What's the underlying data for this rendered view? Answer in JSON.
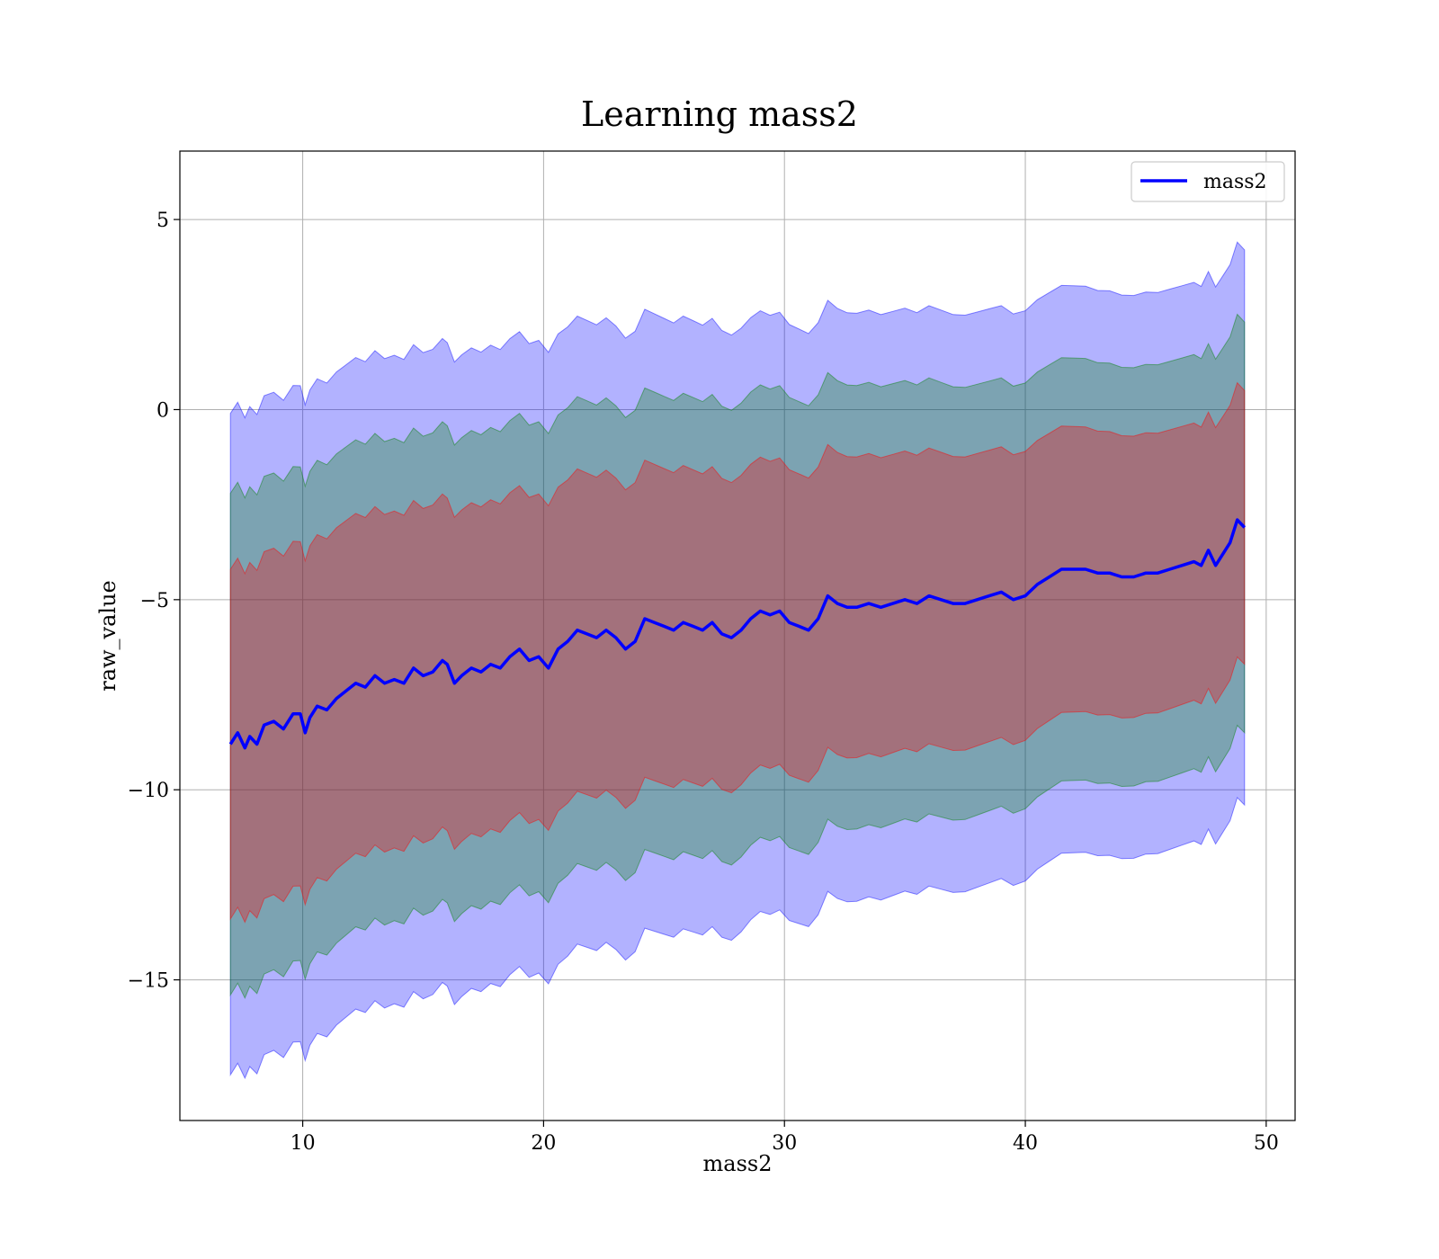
{
  "chart_data": {
    "type": "area",
    "title": "Learning mass2",
    "xlabel": "mass2",
    "ylabel": "raw_value",
    "xlim": [
      4.9,
      51.2
    ],
    "ylim": [
      -18.7,
      6.8
    ],
    "xticks": [
      10,
      20,
      30,
      40,
      50
    ],
    "yticks": [
      5,
      0,
      -5,
      -10,
      -15
    ],
    "xtick_labels": [
      "10",
      "20",
      "30",
      "40",
      "50"
    ],
    "ytick_labels": [
      "5",
      "0",
      "−5",
      "−10",
      "−15"
    ],
    "grid": true,
    "legend_position": "top-right",
    "bands": [
      {
        "sigma": 3,
        "color": "#0000ff",
        "opacity": 0.3,
        "half_width": [
          8.7,
          8.5,
          8.2,
          7.8,
          7.5,
          7.3
        ]
      },
      {
        "sigma": 2,
        "color": "#008000",
        "opacity": 0.3,
        "half_width": [
          6.6,
          6.3,
          6.1,
          5.9,
          5.6,
          5.4
        ]
      },
      {
        "sigma": 1,
        "color": "#ff0000",
        "opacity": 0.3,
        "half_width": [
          4.6,
          4.4,
          4.2,
          4.0,
          3.8,
          3.6
        ]
      }
    ],
    "band_width_x": [
      7.0,
      15.0,
      23.0,
      31.0,
      40.0,
      49.1
    ],
    "series": [
      {
        "name": "mass2",
        "color": "#0000ff",
        "x": [
          7.0,
          7.3,
          7.6,
          7.8,
          8.1,
          8.4,
          8.8,
          9.2,
          9.6,
          9.9,
          10.1,
          10.3,
          10.6,
          11.0,
          11.4,
          11.8,
          12.2,
          12.6,
          13.0,
          13.4,
          13.8,
          14.2,
          14.6,
          15.0,
          15.4,
          15.8,
          16.0,
          16.3,
          16.6,
          17.0,
          17.4,
          17.8,
          18.2,
          18.6,
          19.0,
          19.4,
          19.8,
          20.2,
          20.6,
          21.0,
          21.4,
          21.8,
          22.2,
          22.6,
          23.0,
          23.4,
          23.8,
          24.2,
          24.6,
          25.0,
          25.4,
          25.8,
          26.2,
          26.6,
          27.0,
          27.4,
          27.8,
          28.2,
          28.6,
          29.0,
          29.4,
          29.8,
          30.2,
          30.6,
          31.0,
          31.4,
          31.8,
          32.2,
          32.6,
          33.0,
          33.5,
          34.0,
          34.5,
          35.0,
          35.5,
          36.0,
          36.5,
          37.0,
          37.5,
          38.0,
          38.5,
          39.0,
          39.5,
          40.0,
          40.5,
          41.0,
          41.5,
          42.0,
          42.5,
          43.0,
          43.5,
          44.0,
          44.5,
          45.0,
          45.5,
          46.0,
          46.5,
          47.0,
          47.3,
          47.6,
          47.9,
          48.2,
          48.5,
          48.8,
          49.1
        ],
        "y": [
          -8.8,
          -8.5,
          -8.9,
          -8.6,
          -8.8,
          -8.3,
          -8.2,
          -8.4,
          -8.0,
          -8.0,
          -8.5,
          -8.1,
          -7.8,
          -7.9,
          -7.6,
          -7.4,
          -7.2,
          -7.3,
          -7.0,
          -7.2,
          -7.1,
          -7.2,
          -6.8,
          -7.0,
          -6.9,
          -6.6,
          -6.7,
          -7.2,
          -7.0,
          -6.8,
          -6.9,
          -6.7,
          -6.8,
          -6.5,
          -6.3,
          -6.6,
          -6.5,
          -6.8,
          -6.3,
          -6.1,
          -5.8,
          -5.9,
          -6.0,
          -5.8,
          -6.0,
          -6.3,
          -6.1,
          -5.5,
          -5.6,
          -5.7,
          -5.8,
          -5.6,
          -5.7,
          -5.8,
          -5.6,
          -5.9,
          -6.0,
          -5.8,
          -5.5,
          -5.3,
          -5.4,
          -5.3,
          -5.6,
          -5.7,
          -5.8,
          -5.5,
          -4.9,
          -5.1,
          -5.2,
          -5.2,
          -5.1,
          -5.2,
          -5.1,
          -5.0,
          -5.1,
          -4.9,
          -5.0,
          -5.1,
          -5.1,
          -5.0,
          -4.9,
          -4.8,
          -5.0,
          -4.9,
          -4.6,
          -4.4,
          -4.2,
          -4.2,
          -4.2,
          -4.3,
          -4.3,
          -4.4,
          -4.4,
          -4.3,
          -4.3,
          -4.2,
          -4.1,
          -4.0,
          -4.1,
          -3.7,
          -4.1,
          -3.8,
          -3.5,
          -2.9,
          -3.1
        ]
      }
    ]
  }
}
